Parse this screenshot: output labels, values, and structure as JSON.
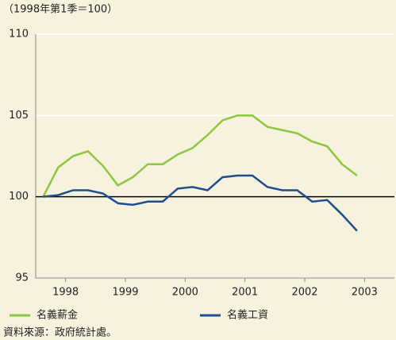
{
  "chart_data": {
    "type": "line",
    "subtitle": "（1998年第1季＝100）",
    "x": [
      1998.125,
      1998.375,
      1998.625,
      1998.875,
      1999.125,
      1999.375,
      1999.625,
      1999.875,
      2000.125,
      2000.375,
      2000.625,
      2000.875,
      2001.125,
      2001.375,
      2001.625,
      2001.875,
      2002.125,
      2002.375,
      2002.625,
      2002.875,
      2003.125,
      2003.375
    ],
    "series": [
      {
        "name": "名義薪金",
        "color": "#8dc63f",
        "values": [
          100,
          101.8,
          102.5,
          102.8,
          101.9,
          100.7,
          101.2,
          102.0,
          102.0,
          102.6,
          103.0,
          103.8,
          104.7,
          105.0,
          105.0,
          104.3,
          104.1,
          103.9,
          103.4,
          103.1,
          102.0,
          101.3
        ]
      },
      {
        "name": "名義工資",
        "color": "#1f4e8c",
        "values": [
          100,
          100.1,
          100.4,
          100.4,
          100.2,
          99.6,
          99.5,
          99.7,
          99.7,
          100.5,
          100.6,
          100.4,
          101.2,
          101.3,
          101.3,
          100.6,
          100.4,
          100.4,
          99.7,
          99.8,
          98.9,
          97.9
        ]
      }
    ],
    "xlim": [
      1998,
      2004
    ],
    "xticks": [
      {
        "value": 1998.5,
        "label": "1998"
      },
      {
        "value": 1999.5,
        "label": "1999"
      },
      {
        "value": 2000.5,
        "label": "2000"
      },
      {
        "value": 2001.5,
        "label": "2001"
      },
      {
        "value": 2002.5,
        "label": "2002"
      },
      {
        "value": 2003.5,
        "label": "2003"
      }
    ],
    "ylim": [
      95,
      110
    ],
    "yticks": [
      95,
      100,
      105,
      110
    ],
    "reference_line": 100,
    "grid": true,
    "source": "資料來源：政府統計處。"
  }
}
